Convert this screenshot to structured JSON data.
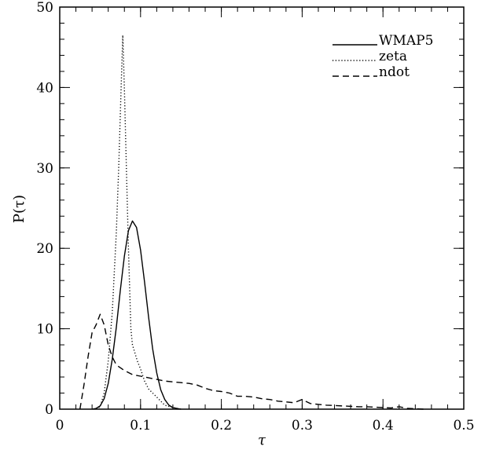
{
  "chart_data": {
    "type": "line",
    "xlabel": "τ",
    "ylabel": "P(τ)",
    "xlim": [
      0,
      0.5
    ],
    "ylim": [
      0,
      50
    ],
    "x_ticks": [
      0,
      0.1,
      0.2,
      0.3,
      0.4,
      0.5
    ],
    "x_tick_labels": [
      "0",
      "0.1",
      "0.2",
      "0.3",
      "0.4",
      "0.5"
    ],
    "y_ticks": [
      0,
      10,
      20,
      30,
      40,
      50
    ],
    "y_tick_labels": [
      "0",
      "10",
      "20",
      "30",
      "40",
      "50"
    ],
    "x_minor_step": 0.02,
    "y_minor_step": 2,
    "grid": false,
    "legend_position": "top-right",
    "series": [
      {
        "name": "WMAP5",
        "style": "solid",
        "color": "#000000",
        "points": [
          [
            0.04,
            0
          ],
          [
            0.045,
            0.1
          ],
          [
            0.05,
            0.4
          ],
          [
            0.055,
            1.3
          ],
          [
            0.06,
            3.2
          ],
          [
            0.065,
            6.2
          ],
          [
            0.07,
            10.2
          ],
          [
            0.075,
            14.8
          ],
          [
            0.08,
            19
          ],
          [
            0.085,
            22.2
          ],
          [
            0.09,
            23.4
          ],
          [
            0.095,
            22.6
          ],
          [
            0.1,
            19.8
          ],
          [
            0.105,
            15.8
          ],
          [
            0.11,
            11.4
          ],
          [
            0.115,
            7.5
          ],
          [
            0.12,
            4.5
          ],
          [
            0.125,
            2.4
          ],
          [
            0.13,
            1.2
          ],
          [
            0.135,
            0.5
          ],
          [
            0.14,
            0.2
          ],
          [
            0.15,
            0
          ]
        ]
      },
      {
        "name": "zeta",
        "style": "dotted",
        "color": "#000000",
        "points": [
          [
            0.045,
            0
          ],
          [
            0.05,
            0.3
          ],
          [
            0.055,
            2
          ],
          [
            0.06,
            6
          ],
          [
            0.065,
            12
          ],
          [
            0.07,
            22
          ],
          [
            0.073,
            30
          ],
          [
            0.076,
            40
          ],
          [
            0.078,
            46.5
          ],
          [
            0.08,
            40
          ],
          [
            0.083,
            28
          ],
          [
            0.085,
            20
          ],
          [
            0.088,
            10
          ],
          [
            0.09,
            8
          ],
          [
            0.093,
            7
          ],
          [
            0.096,
            6
          ],
          [
            0.1,
            5
          ],
          [
            0.105,
            3.5
          ],
          [
            0.11,
            2.5
          ],
          [
            0.115,
            2
          ],
          [
            0.12,
            1.5
          ],
          [
            0.125,
            1
          ],
          [
            0.13,
            0.5
          ],
          [
            0.14,
            0.2
          ],
          [
            0.15,
            0
          ]
        ]
      },
      {
        "name": "ndot",
        "style": "dashed",
        "color": "#000000",
        "points": [
          [
            0.025,
            0
          ],
          [
            0.03,
            3
          ],
          [
            0.035,
            6.5
          ],
          [
            0.04,
            9.5
          ],
          [
            0.045,
            10.5
          ],
          [
            0.05,
            11.8
          ],
          [
            0.055,
            10.5
          ],
          [
            0.06,
            8
          ],
          [
            0.065,
            6.5
          ],
          [
            0.07,
            5.5
          ],
          [
            0.08,
            4.8
          ],
          [
            0.09,
            4.3
          ],
          [
            0.1,
            4.1
          ],
          [
            0.11,
            3.9
          ],
          [
            0.12,
            3.7
          ],
          [
            0.13,
            3.5
          ],
          [
            0.14,
            3.4
          ],
          [
            0.15,
            3.3
          ],
          [
            0.16,
            3.2
          ],
          [
            0.17,
            3
          ],
          [
            0.18,
            2.6
          ],
          [
            0.19,
            2.3
          ],
          [
            0.2,
            2.2
          ],
          [
            0.21,
            2
          ],
          [
            0.22,
            1.6
          ],
          [
            0.23,
            1.6
          ],
          [
            0.24,
            1.5
          ],
          [
            0.25,
            1.3
          ],
          [
            0.26,
            1.2
          ],
          [
            0.27,
            1
          ],
          [
            0.28,
            0.9
          ],
          [
            0.29,
            0.8
          ],
          [
            0.3,
            1.2
          ],
          [
            0.31,
            0.7
          ],
          [
            0.32,
            0.6
          ],
          [
            0.33,
            0.5
          ],
          [
            0.34,
            0.45
          ],
          [
            0.35,
            0.4
          ],
          [
            0.36,
            0.35
          ],
          [
            0.37,
            0.3
          ],
          [
            0.38,
            0.3
          ],
          [
            0.39,
            0.25
          ],
          [
            0.4,
            0.2
          ],
          [
            0.41,
            0.15
          ],
          [
            0.42,
            0.3
          ],
          [
            0.43,
            0.1
          ],
          [
            0.44,
            0.05
          ],
          [
            0.45,
            0
          ]
        ]
      }
    ]
  }
}
